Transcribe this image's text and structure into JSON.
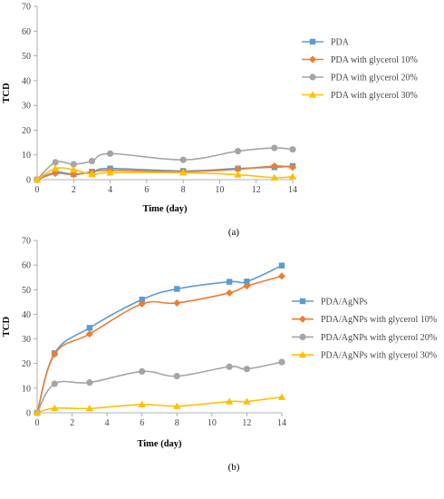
{
  "chart_data": [
    {
      "type": "line",
      "panel_label": "(a)",
      "xlabel": "Time (day)",
      "ylabel": "TCD",
      "xlim": [
        0,
        14
      ],
      "ylim": [
        0,
        70
      ],
      "x_ticks": [
        0,
        2,
        4,
        6,
        8,
        10,
        12,
        14
      ],
      "y_ticks": [
        0,
        10,
        20,
        30,
        40,
        50,
        60,
        70
      ],
      "grid": false,
      "legend_position": "right",
      "series": [
        {
          "name": "PDA",
          "color": "#5b9bd5",
          "marker": "square",
          "x": [
            0,
            1,
            2,
            3,
            4,
            8,
            11,
            13,
            14
          ],
          "y": [
            0,
            3.0,
            2.2,
            3.2,
            4.5,
            3.5,
            4.5,
            5.0,
            5.5
          ]
        },
        {
          "name": "PDA with glycerol 10%",
          "color": "#ed7d31",
          "marker": "diamond",
          "x": [
            0,
            1,
            2,
            3,
            4,
            8,
            11,
            13,
            14
          ],
          "y": [
            0,
            2.5,
            2.0,
            3.0,
            3.8,
            3.2,
            4.2,
            5.5,
            5.0
          ]
        },
        {
          "name": "PDA with glycerol 20%",
          "color": "#a5a5a5",
          "marker": "circle",
          "x": [
            0,
            1,
            2,
            3,
            4,
            8,
            11,
            13,
            14
          ],
          "y": [
            0,
            7.0,
            6.2,
            7.5,
            10.5,
            8.0,
            11.5,
            12.8,
            12.2
          ]
        },
        {
          "name": "PDA with glycerol 30%",
          "color": "#ffc000",
          "marker": "triangle",
          "x": [
            0,
            1,
            2,
            3,
            4,
            8,
            11,
            13,
            14
          ],
          "y": [
            0,
            4.5,
            4.0,
            2.2,
            2.8,
            2.8,
            2.0,
            0.8,
            1.2
          ]
        }
      ]
    },
    {
      "type": "line",
      "panel_label": "(b)",
      "xlabel": "Time (day)",
      "ylabel": "TCD",
      "xlim": [
        0,
        14
      ],
      "ylim": [
        0,
        70
      ],
      "x_ticks": [
        0,
        2,
        4,
        6,
        8,
        10,
        12,
        14
      ],
      "y_ticks": [
        0,
        10,
        20,
        30,
        40,
        50,
        60,
        70
      ],
      "grid": false,
      "legend_position": "right",
      "series": [
        {
          "name": "PDA/AgNPs",
          "color": "#5b9bd5",
          "marker": "square",
          "x": [
            0,
            1,
            3,
            6,
            8,
            11,
            12,
            14
          ],
          "y": [
            0,
            24.2,
            34.5,
            46.0,
            50.3,
            53.2,
            53.3,
            59.8
          ]
        },
        {
          "name": "PDA/AgNPs with glycerol 10%",
          "color": "#ed7d31",
          "marker": "diamond",
          "x": [
            0,
            1,
            3,
            6,
            8,
            11,
            12,
            14
          ],
          "y": [
            0,
            23.8,
            32.0,
            44.2,
            44.6,
            48.7,
            51.5,
            55.5
          ]
        },
        {
          "name": "PDA/AgNPs with glycerol 20%",
          "color": "#a5a5a5",
          "marker": "circle",
          "x": [
            0,
            1,
            3,
            6,
            8,
            11,
            12,
            14
          ],
          "y": [
            0,
            11.8,
            12.3,
            16.8,
            14.9,
            18.7,
            17.8,
            20.6
          ]
        },
        {
          "name": "PDA/AgNPs with glycerol 30%",
          "color": "#ffc000",
          "marker": "triangle",
          "x": [
            0,
            1,
            3,
            6,
            8,
            11,
            12,
            14
          ],
          "y": [
            0,
            1.9,
            1.8,
            3.4,
            2.7,
            4.6,
            4.6,
            6.4
          ]
        }
      ]
    }
  ]
}
